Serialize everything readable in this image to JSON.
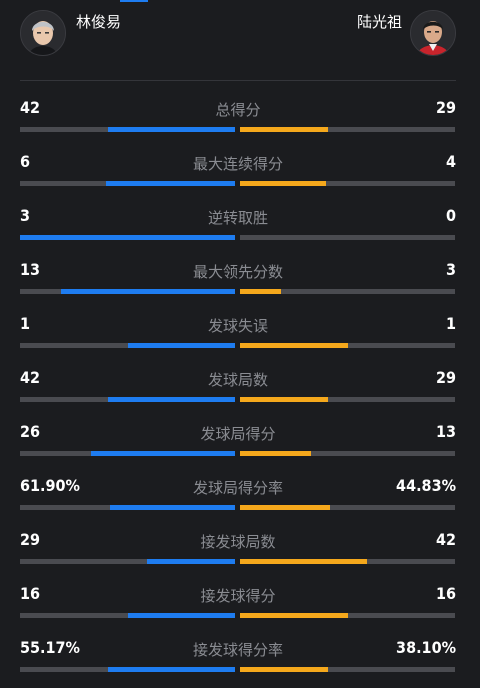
{
  "header": {
    "left_player": {
      "name": "林俊易",
      "avatar_icon": "player-portrait-icon"
    },
    "right_player": {
      "name": "陆光祖",
      "avatar_icon": "player-portrait-icon"
    }
  },
  "colors": {
    "left_accent": "#1e7cf0",
    "right_accent": "#f5a81c",
    "track": "#4a4b50"
  },
  "stats": [
    {
      "label": "总得分",
      "left": "42",
      "right": "29",
      "left_fill": 0.59,
      "right_fill": 0.41
    },
    {
      "label": "最大连续得分",
      "left": "6",
      "right": "4",
      "left_fill": 0.6,
      "right_fill": 0.4
    },
    {
      "label": "逆转取胜",
      "left": "3",
      "right": "0",
      "left_fill": 1.0,
      "right_fill": 0.0
    },
    {
      "label": "最大领先分数",
      "left": "13",
      "right": "3",
      "left_fill": 0.81,
      "right_fill": 0.19
    },
    {
      "label": "发球失误",
      "left": "1",
      "right": "1",
      "left_fill": 0.5,
      "right_fill": 0.5
    },
    {
      "label": "发球局数",
      "left": "42",
      "right": "29",
      "left_fill": 0.59,
      "right_fill": 0.41
    },
    {
      "label": "发球局得分",
      "left": "26",
      "right": "13",
      "left_fill": 0.67,
      "right_fill": 0.33
    },
    {
      "label": "发球局得分率",
      "left": "61.90%",
      "right": "44.83%",
      "left_fill": 0.58,
      "right_fill": 0.42
    },
    {
      "label": "接发球局数",
      "left": "29",
      "right": "42",
      "left_fill": 0.41,
      "right_fill": 0.59
    },
    {
      "label": "接发球得分",
      "left": "16",
      "right": "16",
      "left_fill": 0.5,
      "right_fill": 0.5
    },
    {
      "label": "接发球得分率",
      "left": "55.17%",
      "right": "38.10%",
      "left_fill": 0.59,
      "right_fill": 0.41
    }
  ]
}
